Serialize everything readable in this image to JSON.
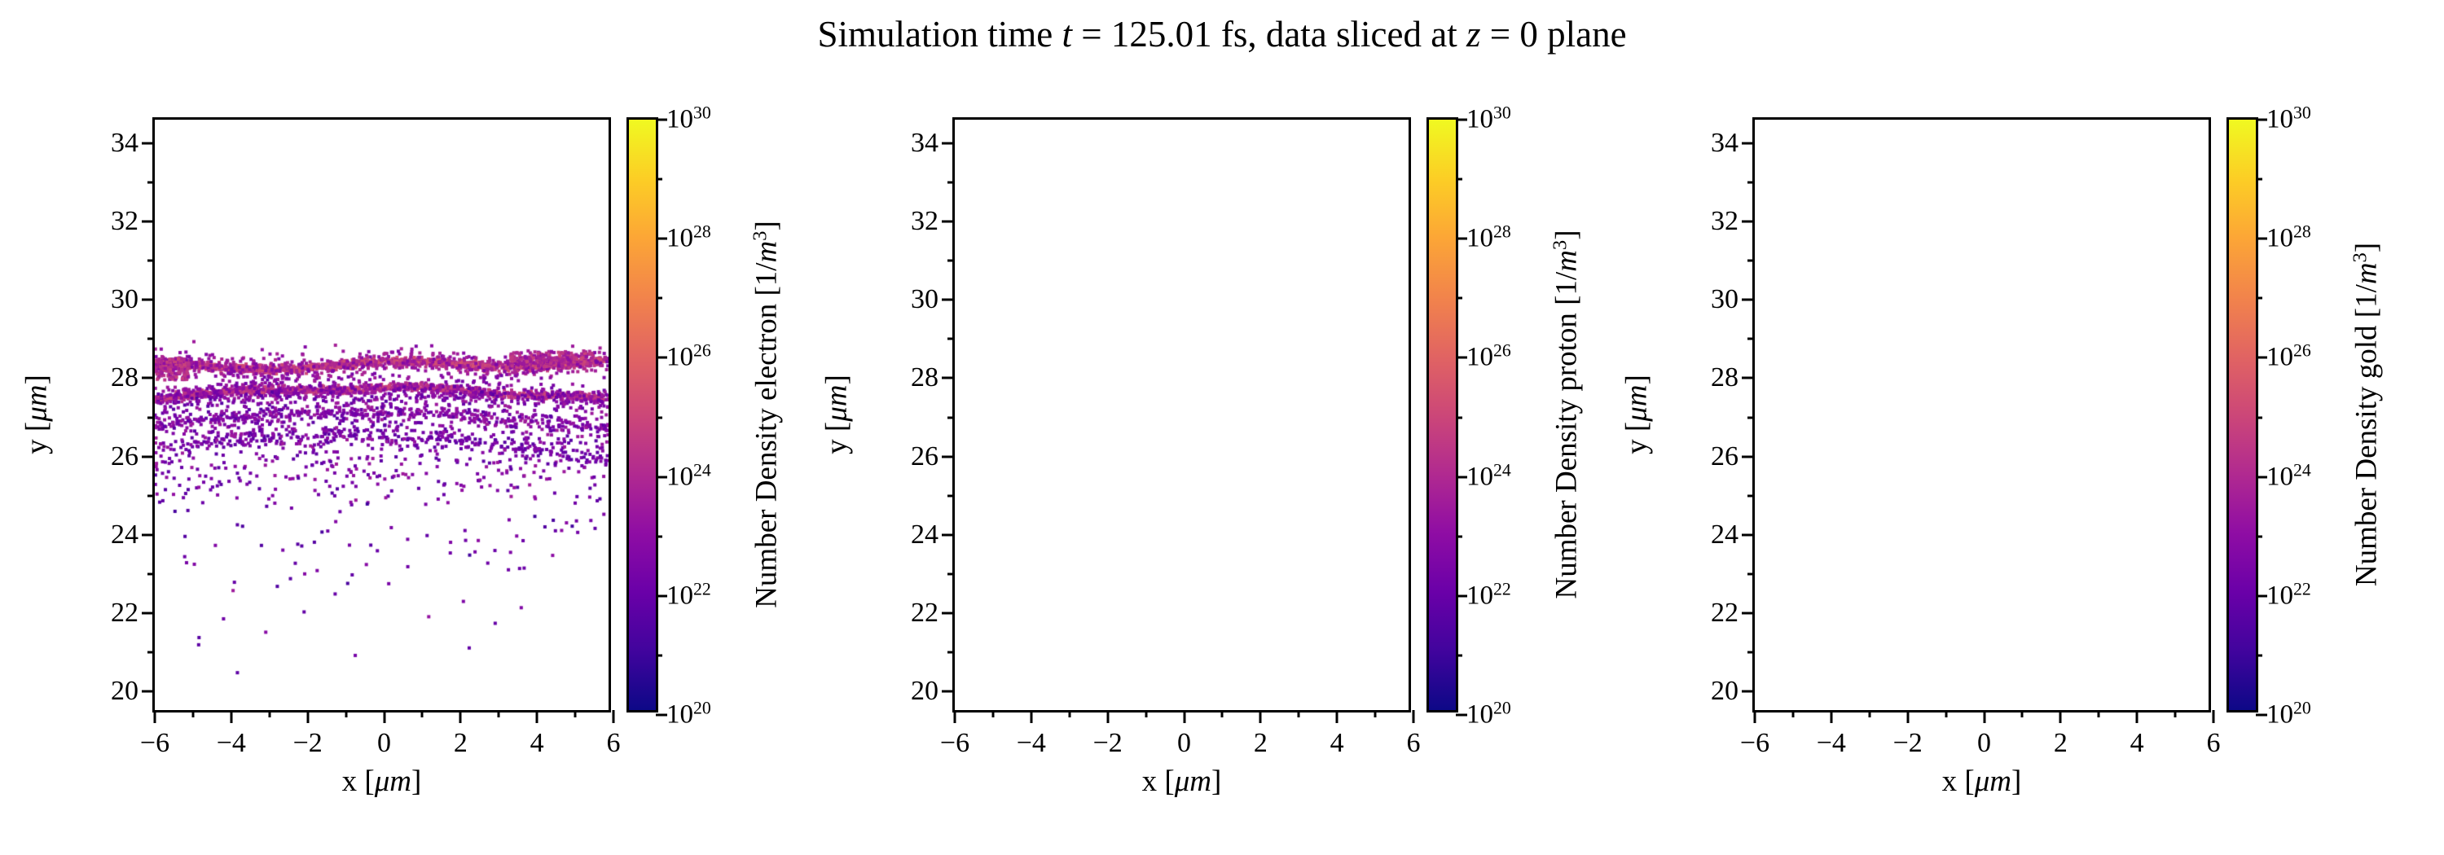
{
  "title": {
    "parts": [
      "Simulation time ",
      "t",
      " = 125.01 fs, data sliced at ",
      "z",
      " = 0 plane"
    ]
  },
  "colormap": {
    "name": "plasma",
    "stops": [
      "#0d0887",
      "#41049d",
      "#6a00a8",
      "#8f0da4",
      "#b12a90",
      "#cc4778",
      "#e16462",
      "#f2844b",
      "#fca636",
      "#fcce25",
      "#f0f921"
    ]
  },
  "chart_data": [
    {
      "type": "scatter",
      "species": "electron",
      "xlabel": {
        "prefix": "x [",
        "math": "μm",
        "suffix": "]"
      },
      "ylabel": {
        "prefix": "y [",
        "math": "μm",
        "suffix": "]"
      },
      "xlim": [
        -6,
        6
      ],
      "ylim": [
        19.4,
        34.6
      ],
      "xticks": {
        "values": [
          -6,
          -4,
          -2,
          0,
          2,
          4,
          6
        ],
        "labels": [
          "−6",
          "−4",
          "−2",
          "0",
          "2",
          "4",
          "6"
        ],
        "minor": [
          -5,
          -3,
          -1,
          1,
          3,
          5
        ]
      },
      "yticks": {
        "values": [
          20,
          22,
          24,
          26,
          28,
          30,
          32,
          34
        ],
        "labels": [
          "20",
          "22",
          "24",
          "26",
          "28",
          "30",
          "32",
          "34"
        ],
        "minor": [
          21,
          23,
          25,
          27,
          29,
          31,
          33
        ]
      },
      "colorbar": {
        "scale": "log",
        "label": {
          "prefix": "Number Density electron [1/",
          "symbol": "m",
          "exponent": "3",
          "suffix": "]"
        },
        "tick_base": "10",
        "exp_min": 20,
        "exp_max": 30,
        "major_exponents": [
          20,
          22,
          24,
          26,
          28,
          30
        ],
        "minor_exponents": [
          21,
          23,
          25,
          27,
          29
        ]
      },
      "points": {
        "seed": 20250101,
        "size": 4,
        "clusters": [
          {
            "name": "surface-band-upper",
            "count": 1400,
            "x_min": -6,
            "x_max": 6,
            "poly": [
              28.27,
              0.008,
              0.002
            ],
            "wiggle_amp": 0.09,
            "wiggle_freq": 0.9,
            "wiggle_phase": 1.2,
            "y_sigma": 0.055,
            "density_min": 23.5,
            "density_max": 25.5
          },
          {
            "name": "surface-band-upper-halo",
            "count": 500,
            "x_min": -6,
            "x_max": 6,
            "poly": [
              28.27,
              0.008,
              0.002
            ],
            "wiggle_amp": 0.09,
            "wiggle_freq": 0.9,
            "wiggle_phase": 1.2,
            "y_sigma": 0.18,
            "density_min": 22.5,
            "density_max": 24
          },
          {
            "name": "edge-clump-left",
            "count": 150,
            "x_min": -6,
            "x_max": -5.1,
            "y_min": 27.9,
            "y_max": 28.45,
            "density_min": 23,
            "density_max": 25
          },
          {
            "name": "blob-right",
            "count": 250,
            "x_min": 3.4,
            "x_max": 5.6,
            "poly": [
              28.3,
              0.03,
              0
            ],
            "y_sigma": 0.1,
            "density_min": 23,
            "density_max": 25
          },
          {
            "name": "surface-band-mid",
            "count": 1100,
            "x_min": -6,
            "x_max": 6,
            "poly": [
              27.68,
              -0.004,
              -0.008
            ],
            "wiggle_amp": 0.05,
            "wiggle_freq": 1.3,
            "wiggle_phase": 0.4,
            "y_sigma": 0.05,
            "density_min": 23,
            "density_max": 25
          },
          {
            "name": "surface-band-mid-halo",
            "count": 450,
            "x_min": -6,
            "x_max": 6,
            "poly": [
              27.68,
              -0.004,
              -0.008
            ],
            "y_sigma": 0.16,
            "density_min": 22,
            "density_max": 23.5
          },
          {
            "name": "band-lower",
            "count": 380,
            "x_min": -6,
            "x_max": 6,
            "poly": [
              27.05,
              -0.01,
              -0.01
            ],
            "y_sigma": 0.09,
            "density_min": 22,
            "density_max": 23.5
          },
          {
            "name": "arc-faint",
            "count": 300,
            "x_min": -6,
            "x_max": 6,
            "poly": [
              26.45,
              -0.02,
              -0.012
            ],
            "y_sigma": 0.12,
            "density_min": 21.5,
            "density_max": 23
          },
          {
            "name": "diffuse-cloud",
            "count": 900,
            "x_min": -6,
            "x_max": 6,
            "y_min": 24.6,
            "y_max": 27.6,
            "top_bias": 1.8,
            "density_min": 21.5,
            "density_max": 23.5
          },
          {
            "name": "sparse-low",
            "count": 70,
            "x_min": -6,
            "x_max": 6,
            "y_min": 22.3,
            "y_max": 24.8,
            "top_bias": 1.3,
            "density_min": 21,
            "density_max": 23
          },
          {
            "name": "outliers",
            "count": 14,
            "x_min": -5.5,
            "x_max": 5,
            "y_min": 19.8,
            "y_max": 22.5,
            "density_min": 21.5,
            "density_max": 23.5
          }
        ]
      }
    },
    {
      "type": "scatter",
      "species": "proton",
      "xlabel": {
        "prefix": "x [",
        "math": "μm",
        "suffix": "]"
      },
      "ylabel": {
        "prefix": "y [",
        "math": "μm",
        "suffix": "]"
      },
      "xlim": [
        -6,
        6
      ],
      "ylim": [
        19.4,
        34.6
      ],
      "xticks": {
        "values": [
          -6,
          -4,
          -2,
          0,
          2,
          4,
          6
        ],
        "labels": [
          "−6",
          "−4",
          "−2",
          "0",
          "2",
          "4",
          "6"
        ],
        "minor": [
          -5,
          -3,
          -1,
          1,
          3,
          5
        ]
      },
      "yticks": {
        "values": [
          20,
          22,
          24,
          26,
          28,
          30,
          32,
          34
        ],
        "labels": [
          "20",
          "22",
          "24",
          "26",
          "28",
          "30",
          "32",
          "34"
        ],
        "minor": [
          21,
          23,
          25,
          27,
          29,
          31,
          33
        ]
      },
      "colorbar": {
        "scale": "log",
        "label": {
          "prefix": "Number Density proton [1/",
          "symbol": "m",
          "exponent": "3",
          "suffix": "]"
        },
        "tick_base": "10",
        "exp_min": 20,
        "exp_max": 30,
        "major_exponents": [
          20,
          22,
          24,
          26,
          28,
          30
        ],
        "minor_exponents": [
          21,
          23,
          25,
          27,
          29
        ]
      },
      "points": {
        "seed": 2,
        "size": 4,
        "clusters": []
      }
    },
    {
      "type": "scatter",
      "species": "gold",
      "xlabel": {
        "prefix": "x [",
        "math": "μm",
        "suffix": "]"
      },
      "ylabel": {
        "prefix": "y [",
        "math": "μm",
        "suffix": "]"
      },
      "xlim": [
        -6,
        6
      ],
      "ylim": [
        19.4,
        34.6
      ],
      "xticks": {
        "values": [
          -6,
          -4,
          -2,
          0,
          2,
          4,
          6
        ],
        "labels": [
          "−6",
          "−4",
          "−2",
          "0",
          "2",
          "4",
          "6"
        ],
        "minor": [
          -5,
          -3,
          -1,
          1,
          3,
          5
        ]
      },
      "yticks": {
        "values": [
          20,
          22,
          24,
          26,
          28,
          30,
          32,
          34
        ],
        "labels": [
          "20",
          "22",
          "24",
          "26",
          "28",
          "30",
          "32",
          "34"
        ],
        "minor": [
          21,
          23,
          25,
          27,
          29,
          31,
          33
        ]
      },
      "colorbar": {
        "scale": "log",
        "label": {
          "prefix": "Number Density gold [1/",
          "symbol": "m",
          "exponent": "3",
          "suffix": "]"
        },
        "tick_base": "10",
        "exp_min": 20,
        "exp_max": 30,
        "major_exponents": [
          20,
          22,
          24,
          26,
          28,
          30
        ],
        "minor_exponents": [
          21,
          23,
          25,
          27,
          29
        ]
      },
      "points": {
        "seed": 3,
        "size": 4,
        "clusters": []
      }
    }
  ]
}
